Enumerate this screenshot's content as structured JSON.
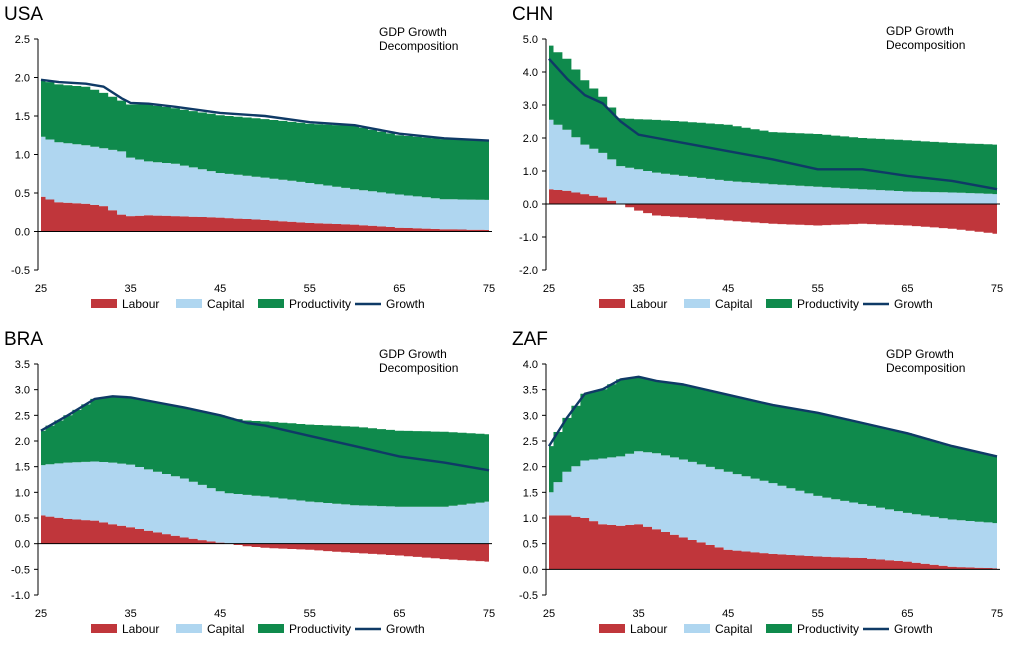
{
  "legend": {
    "labour": "Labour",
    "capital": "Capital",
    "productivity": "Productivity",
    "growth": "Growth"
  },
  "colors": {
    "labour": "#c0363b",
    "capital": "#afd6f0",
    "productivity": "#0f8a4c",
    "growth": "#0f3a66"
  },
  "panel_title": "GDP Growth",
  "panel_subtitle": "Decomposition",
  "chart_data": [
    {
      "country": "USA",
      "type": "area",
      "title": "GDP Growth Decomposition",
      "ylim": [
        -0.5,
        2.5
      ],
      "yticks": [
        "2.5",
        "2.0",
        "1.5",
        "1.0",
        "0.5",
        "0.0",
        "-0.5"
      ],
      "xlim": [
        25,
        75
      ],
      "xticks": [
        25,
        35,
        45,
        55,
        65,
        75
      ],
      "x_points": [
        25,
        27,
        30,
        32,
        34,
        35,
        37,
        40,
        45,
        50,
        55,
        60,
        65,
        70,
        75
      ],
      "labour": [
        0.45,
        0.38,
        0.36,
        0.33,
        0.22,
        0.2,
        0.21,
        0.2,
        0.18,
        0.15,
        0.11,
        0.09,
        0.05,
        0.03,
        0.02
      ],
      "capital": [
        0.78,
        0.78,
        0.76,
        0.75,
        0.82,
        0.76,
        0.7,
        0.68,
        0.58,
        0.55,
        0.52,
        0.46,
        0.43,
        0.39,
        0.39
      ],
      "productivity": [
        0.74,
        0.75,
        0.76,
        0.72,
        0.66,
        0.69,
        0.74,
        0.72,
        0.75,
        0.76,
        0.77,
        0.82,
        0.77,
        0.78,
        0.77
      ],
      "growth": [
        1.97,
        1.94,
        1.92,
        1.88,
        1.73,
        1.67,
        1.66,
        1.62,
        1.54,
        1.5,
        1.42,
        1.38,
        1.27,
        1.21,
        1.18
      ]
    },
    {
      "country": "CHN",
      "type": "area",
      "title": "GDP Growth Decomposition",
      "ylim": [
        -2.0,
        5.0
      ],
      "yticks": [
        "5.0",
        "4.0",
        "3.0",
        "2.0",
        "1.0",
        "0.0",
        "-1.0",
        "-2.0"
      ],
      "xlim": [
        25,
        75
      ],
      "xticks": [
        25,
        35,
        45,
        55,
        65,
        75
      ],
      "x_points": [
        25,
        27,
        29,
        31,
        33,
        35,
        37,
        40,
        45,
        50,
        55,
        60,
        65,
        70,
        75
      ],
      "labour": [
        0.45,
        0.4,
        0.3,
        0.2,
        0.0,
        -0.2,
        -0.35,
        -0.4,
        -0.5,
        -0.6,
        -0.65,
        -0.6,
        -0.65,
        -0.75,
        -0.9
      ],
      "capital": [
        2.1,
        1.85,
        1.5,
        1.35,
        1.15,
        1.05,
        0.95,
        0.85,
        0.7,
        0.6,
        0.52,
        0.45,
        0.38,
        0.35,
        0.3
      ],
      "productivity": [
        2.25,
        2.15,
        1.95,
        1.7,
        1.45,
        1.52,
        1.6,
        1.65,
        1.7,
        1.58,
        1.6,
        1.55,
        1.55,
        1.5,
        1.5
      ],
      "growth": [
        4.4,
        3.8,
        3.3,
        3.05,
        2.5,
        2.1,
        2.0,
        1.85,
        1.6,
        1.35,
        1.05,
        1.05,
        0.85,
        0.7,
        0.45
      ]
    },
    {
      "country": "BRA",
      "type": "area",
      "title": "GDP Growth Decomposition",
      "ylim": [
        -1.0,
        3.5
      ],
      "yticks": [
        "3.5",
        "3.0",
        "2.5",
        "2.0",
        "1.5",
        "1.0",
        "0.5",
        "0.0",
        "-0.5",
        "-1.0"
      ],
      "xlim": [
        25,
        75
      ],
      "xticks": [
        25,
        35,
        45,
        55,
        65,
        75
      ],
      "x_points": [
        25,
        28,
        31,
        33,
        35,
        38,
        41,
        45,
        48,
        50,
        55,
        60,
        65,
        70,
        75
      ],
      "labour": [
        0.55,
        0.48,
        0.45,
        0.38,
        0.32,
        0.22,
        0.12,
        0.02,
        -0.05,
        -0.08,
        -0.12,
        -0.18,
        -0.23,
        -0.3,
        -0.35
      ],
      "capital": [
        0.98,
        1.1,
        1.15,
        1.2,
        1.22,
        1.18,
        1.15,
        1.0,
        0.95,
        0.92,
        0.82,
        0.75,
        0.72,
        0.72,
        0.82
      ],
      "productivity": [
        0.67,
        0.92,
        1.22,
        1.29,
        1.31,
        1.35,
        1.38,
        1.48,
        1.45,
        1.46,
        1.5,
        1.53,
        1.48,
        1.46,
        1.31
      ],
      "growth": [
        2.2,
        2.5,
        2.82,
        2.87,
        2.85,
        2.75,
        2.65,
        2.5,
        2.35,
        2.3,
        2.1,
        1.9,
        1.7,
        1.58,
        1.43
      ]
    },
    {
      "country": "ZAF",
      "type": "area",
      "title": "GDP Growth Decomposition",
      "ylim": [
        -0.5,
        4.0
      ],
      "yticks": [
        "4.0",
        "3.5",
        "3.0",
        "2.5",
        "2.0",
        "1.5",
        "1.0",
        "0.5",
        "0.0",
        "-0.5"
      ],
      "xlim": [
        25,
        75
      ],
      "xticks": [
        25,
        35,
        45,
        55,
        65,
        75
      ],
      "x_points": [
        25,
        27,
        29,
        31,
        33,
        35,
        37,
        40,
        45,
        50,
        55,
        60,
        65,
        70,
        75
      ],
      "labour": [
        1.05,
        1.05,
        1.0,
        0.88,
        0.85,
        0.88,
        0.78,
        0.62,
        0.38,
        0.3,
        0.25,
        0.22,
        0.15,
        0.05,
        0.02
      ],
      "capital": [
        0.45,
        0.85,
        1.12,
        1.28,
        1.35,
        1.42,
        1.48,
        1.52,
        1.52,
        1.38,
        1.18,
        1.05,
        0.95,
        0.92,
        0.88
      ],
      "productivity": [
        0.9,
        1.05,
        1.3,
        1.35,
        1.5,
        1.45,
        1.41,
        1.46,
        1.5,
        1.52,
        1.62,
        1.58,
        1.55,
        1.43,
        1.3
      ],
      "growth": [
        2.4,
        2.95,
        3.42,
        3.51,
        3.7,
        3.75,
        3.67,
        3.6,
        3.4,
        3.2,
        3.05,
        2.85,
        2.65,
        2.4,
        2.2
      ]
    }
  ]
}
